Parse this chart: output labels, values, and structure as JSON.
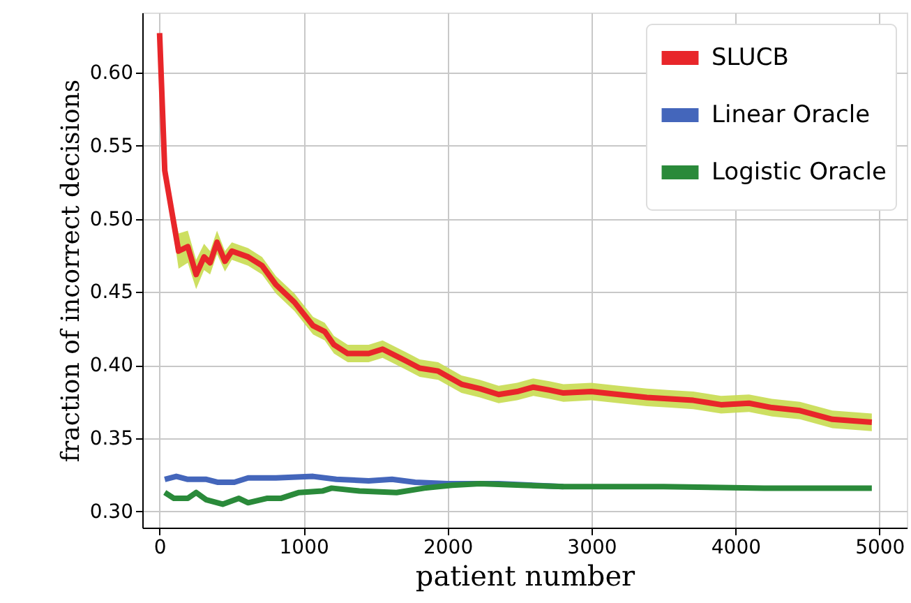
{
  "chart_data": {
    "type": "line",
    "xlabel": "patient number",
    "ylabel": "fraction of incorrect decisions",
    "xlim": [
      -120,
      5190
    ],
    "ylim": [
      0.289,
      0.641
    ],
    "xticks": [
      0,
      1000,
      2000,
      3000,
      4000,
      5000
    ],
    "yticks": [
      {
        "value": 0.3,
        "label": "0.30"
      },
      0.35,
      {
        "value": 0.4,
        "label": "0.40"
      },
      0.45,
      {
        "value": 0.5,
        "label": "0.50"
      },
      0.55,
      {
        "value": 0.6,
        "label": "0.60"
      }
    ],
    "grid": true,
    "legend": "top right",
    "line_style": "solid",
    "marker": "none",
    "series": [
      {
        "name": "SLUCB",
        "color": "#e8262a",
        "x": [
          0,
          36,
          132,
          196,
          254,
          309,
          351,
          399,
          454,
          502,
          615,
          712,
          808,
          937,
          1066,
          1147,
          1211,
          1307,
          1452,
          1549,
          1710,
          1807,
          1935,
          2097,
          2225,
          2355,
          2483,
          2596,
          2708,
          2805,
          2998,
          3191,
          3385,
          3546,
          3707,
          3900,
          4094,
          4254,
          4448,
          4673,
          4947
        ],
        "values": [
          0.627,
          0.533,
          0.478,
          0.481,
          0.462,
          0.474,
          0.47,
          0.484,
          0.471,
          0.478,
          0.474,
          0.468,
          0.455,
          0.443,
          0.427,
          0.423,
          0.414,
          0.408,
          0.408,
          0.411,
          0.403,
          0.398,
          0.396,
          0.387,
          0.384,
          0.38,
          0.382,
          0.385,
          0.383,
          0.381,
          0.382,
          0.38,
          0.378,
          0.377,
          0.376,
          0.373,
          0.374,
          0.371,
          0.369,
          0.363,
          0.361
        ],
        "lower": [
          0.625,
          0.53,
          0.466,
          0.47,
          0.452,
          0.465,
          0.462,
          0.476,
          0.464,
          0.472,
          0.468,
          0.462,
          0.449,
          0.437,
          0.421,
          0.417,
          0.408,
          0.402,
          0.402,
          0.405,
          0.397,
          0.392,
          0.39,
          0.381,
          0.378,
          0.374,
          0.376,
          0.379,
          0.377,
          0.375,
          0.376,
          0.374,
          0.372,
          0.371,
          0.37,
          0.367,
          0.368,
          0.365,
          0.363,
          0.357,
          0.355
        ],
        "upper": [
          0.629,
          0.536,
          0.49,
          0.492,
          0.472,
          0.483,
          0.478,
          0.492,
          0.478,
          0.484,
          0.48,
          0.474,
          0.461,
          0.449,
          0.433,
          0.429,
          0.42,
          0.414,
          0.414,
          0.417,
          0.409,
          0.404,
          0.402,
          0.393,
          0.39,
          0.386,
          0.388,
          0.391,
          0.389,
          0.387,
          0.388,
          0.386,
          0.384,
          0.383,
          0.382,
          0.379,
          0.38,
          0.377,
          0.375,
          0.369,
          0.367
        ]
      },
      {
        "name": "Linear Oracle",
        "color": "#4466bb",
        "x": [
          36,
          116,
          196,
          325,
          406,
          470,
          519,
          615,
          808,
          1066,
          1227,
          1452,
          1614,
          1775,
          2000,
          2161,
          2355,
          2805
        ],
        "values": [
          0.322,
          0.324,
          0.322,
          0.322,
          0.32,
          0.32,
          0.32,
          0.323,
          0.323,
          0.324,
          0.322,
          0.321,
          0.322,
          0.32,
          0.319,
          0.319,
          0.319,
          0.317
        ]
      },
      {
        "name": "Logistic Oracle",
        "color": "#2a8a3a",
        "x": [
          36,
          100,
          196,
          254,
          325,
          438,
          551,
          615,
          744,
          841,
          969,
          1130,
          1195,
          1388,
          1646,
          1839,
          2032,
          2225,
          2515,
          2805,
          3500,
          4200,
          4947
        ],
        "values": [
          0.313,
          0.309,
          0.309,
          0.313,
          0.308,
          0.305,
          0.309,
          0.306,
          0.309,
          0.309,
          0.313,
          0.314,
          0.316,
          0.314,
          0.313,
          0.316,
          0.318,
          0.319,
          0.318,
          0.317,
          0.317,
          0.316,
          0.316
        ]
      }
    ]
  }
}
